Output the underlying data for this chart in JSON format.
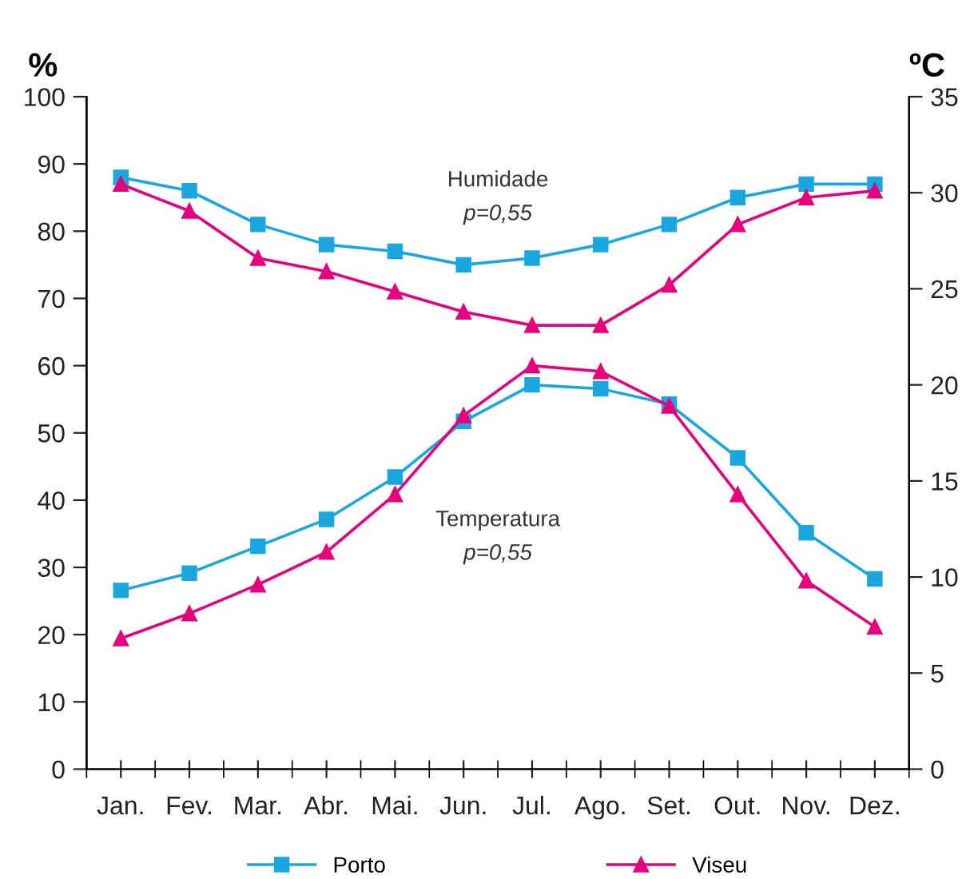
{
  "chart_data": {
    "type": "line",
    "categories": [
      "Jan.",
      "Fev.",
      "Mar.",
      "Abr.",
      "Mai.",
      "Jun.",
      "Jul.",
      "Ago.",
      "Set.",
      "Out.",
      "Nov.",
      "Dez."
    ],
    "ylabel": "%",
    "y2label": "ºC",
    "ylim": [
      0,
      100
    ],
    "yticks": [
      0,
      10,
      20,
      30,
      40,
      50,
      60,
      70,
      80,
      90,
      100
    ],
    "y2lim": [
      0,
      35
    ],
    "y2ticks": [
      0,
      5,
      10,
      15,
      20,
      25,
      30,
      35
    ],
    "series": [
      {
        "name": "Porto",
        "color": "#1aa7e0",
        "marker": "square",
        "values": [
          88,
          86,
          81,
          78,
          77,
          75,
          76,
          78,
          81,
          85,
          87,
          87
        ]
      },
      {
        "name": "Viseu",
        "color": "#e6007e",
        "marker": "triangle",
        "values": [
          87,
          83,
          76,
          74,
          71,
          68,
          66,
          66,
          72,
          81,
          85,
          86
        ]
      },
      {
        "color": "#1aa7e0",
        "marker": "square",
        "axis": "y2",
        "values": [
          9.3,
          10.2,
          11.6,
          13.0,
          15.2,
          18.1,
          20.0,
          19.8,
          19.0,
          16.2,
          12.3,
          9.9
        ]
      },
      {
        "color": "#e6007e",
        "marker": "triangle",
        "axis": "y2",
        "values": [
          6.8,
          8.1,
          9.6,
          11.3,
          14.3,
          18.4,
          21.0,
          20.7,
          18.9,
          14.3,
          9.8,
          7.4
        ]
      }
    ],
    "annotations": [
      "Humidade",
      "p=0,55",
      "Temperatura",
      "p=0,55"
    ],
    "legend": "bottom",
    "grid": false,
    "line_style": "solid"
  }
}
